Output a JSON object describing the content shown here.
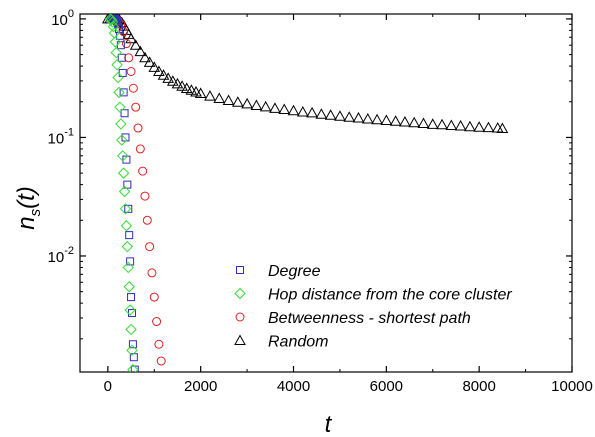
{
  "chart_data": {
    "type": "scatter",
    "xlabel": "t",
    "ylabel_main": "n",
    "ylabel_sub": "s",
    "ylabel_tail": "(t)",
    "xlim": [
      -600,
      10000
    ],
    "ylim": [
      0.00105,
      1.1
    ],
    "yscale": "log",
    "x_ticks": [
      0,
      2000,
      4000,
      6000,
      8000,
      10000
    ],
    "x_tick_labels": [
      "0",
      "2000",
      "4000",
      "6000",
      "8000",
      "10000"
    ],
    "y_ticks": [
      0.01,
      0.1,
      1
    ],
    "y_tick_labels": [
      {
        "base": "10",
        "exp": "-2"
      },
      {
        "base": "10",
        "exp": "-1"
      },
      {
        "base": "10",
        "exp": "0"
      }
    ],
    "legend_position": "lower-right",
    "series": [
      {
        "name": "Degree",
        "marker": "square",
        "color": "#2f2fb8",
        "points": [
          [
            80,
            1
          ],
          [
            100,
            1
          ],
          [
            120,
            1
          ],
          [
            140,
            1
          ],
          [
            160,
            1
          ],
          [
            180,
            0.98
          ],
          [
            200,
            0.95
          ],
          [
            220,
            0.9
          ],
          [
            240,
            0.82
          ],
          [
            260,
            0.72
          ],
          [
            280,
            0.6
          ],
          [
            300,
            0.47
          ],
          [
            320,
            0.35
          ],
          [
            340,
            0.24
          ],
          [
            360,
            0.16
          ],
          [
            380,
            0.1
          ],
          [
            400,
            0.065
          ],
          [
            420,
            0.04
          ],
          [
            440,
            0.025
          ],
          [
            460,
            0.015
          ],
          [
            480,
            0.009
          ],
          [
            500,
            0.0045
          ],
          [
            520,
            0.0033
          ],
          [
            540,
            0.0018
          ],
          [
            560,
            0.0014
          ],
          [
            580,
            0.0011
          ]
        ]
      },
      {
        "name": "Hop distance from the core cluster",
        "marker": "diamond",
        "color": "#33dd33",
        "points": [
          [
            60,
            1
          ],
          [
            80,
            0.98
          ],
          [
            100,
            0.94
          ],
          [
            120,
            0.86
          ],
          [
            140,
            0.76
          ],
          [
            160,
            0.64
          ],
          [
            180,
            0.52
          ],
          [
            200,
            0.41
          ],
          [
            220,
            0.32
          ],
          [
            240,
            0.24
          ],
          [
            260,
            0.18
          ],
          [
            280,
            0.13
          ],
          [
            300,
            0.095
          ],
          [
            320,
            0.07
          ],
          [
            340,
            0.05
          ],
          [
            360,
            0.035
          ],
          [
            380,
            0.025
          ],
          [
            400,
            0.018
          ],
          [
            420,
            0.012
          ],
          [
            440,
            0.008
          ],
          [
            460,
            0.0055
          ],
          [
            480,
            0.0035
          ],
          [
            500,
            0.0024
          ],
          [
            520,
            0.0016
          ],
          [
            540,
            0.0011
          ]
        ]
      },
      {
        "name": "Betweenness - shortest path",
        "marker": "circle",
        "color": "#e02020",
        "points": [
          [
            150,
            1
          ],
          [
            220,
            0.97
          ],
          [
            280,
            0.9
          ],
          [
            340,
            0.78
          ],
          [
            400,
            0.62
          ],
          [
            450,
            0.47
          ],
          [
            500,
            0.36
          ],
          [
            550,
            0.26
          ],
          [
            600,
            0.18
          ],
          [
            650,
            0.12
          ],
          [
            700,
            0.08
          ],
          [
            750,
            0.052
          ],
          [
            800,
            0.032
          ],
          [
            850,
            0.02
          ],
          [
            900,
            0.012
          ],
          [
            950,
            0.0072
          ],
          [
            1000,
            0.0045
          ],
          [
            1050,
            0.0028
          ],
          [
            1100,
            0.0018
          ],
          [
            1150,
            0.0013
          ]
        ]
      },
      {
        "name": "Random",
        "marker": "triangle",
        "color": "#000000",
        "points": [
          [
            0,
            1
          ],
          [
            50,
            1
          ],
          [
            100,
            1
          ],
          [
            150,
            1
          ],
          [
            200,
            1
          ],
          [
            250,
            0.98
          ],
          [
            300,
            0.93
          ],
          [
            350,
            0.87
          ],
          [
            400,
            0.8
          ],
          [
            450,
            0.74
          ],
          [
            500,
            0.68
          ],
          [
            600,
            0.6
          ],
          [
            700,
            0.53
          ],
          [
            800,
            0.47
          ],
          [
            900,
            0.43
          ],
          [
            1000,
            0.39
          ],
          [
            1100,
            0.36
          ],
          [
            1200,
            0.335
          ],
          [
            1300,
            0.315
          ],
          [
            1400,
            0.298
          ],
          [
            1500,
            0.283
          ],
          [
            1600,
            0.27
          ],
          [
            1700,
            0.259
          ],
          [
            1800,
            0.25
          ],
          [
            1900,
            0.242
          ],
          [
            2000,
            0.235
          ],
          [
            2200,
            0.223
          ],
          [
            2400,
            0.213
          ],
          [
            2600,
            0.205
          ],
          [
            2800,
            0.198
          ],
          [
            3000,
            0.192
          ],
          [
            3200,
            0.186
          ],
          [
            3400,
            0.181
          ],
          [
            3600,
            0.176
          ],
          [
            3800,
            0.172
          ],
          [
            4000,
            0.168
          ],
          [
            4200,
            0.164
          ],
          [
            4400,
            0.161
          ],
          [
            4600,
            0.157
          ],
          [
            4800,
            0.154
          ],
          [
            5000,
            0.151
          ],
          [
            5200,
            0.148
          ],
          [
            5400,
            0.146
          ],
          [
            5600,
            0.143
          ],
          [
            5800,
            0.141
          ],
          [
            6000,
            0.139
          ],
          [
            6200,
            0.137
          ],
          [
            6400,
            0.135
          ],
          [
            6600,
            0.133
          ],
          [
            6800,
            0.131
          ],
          [
            7000,
            0.129
          ],
          [
            7200,
            0.128
          ],
          [
            7400,
            0.126
          ],
          [
            7600,
            0.125
          ],
          [
            7800,
            0.123
          ],
          [
            8000,
            0.122
          ],
          [
            8200,
            0.121
          ],
          [
            8400,
            0.12
          ],
          [
            8500,
            0.119
          ]
        ]
      }
    ]
  }
}
